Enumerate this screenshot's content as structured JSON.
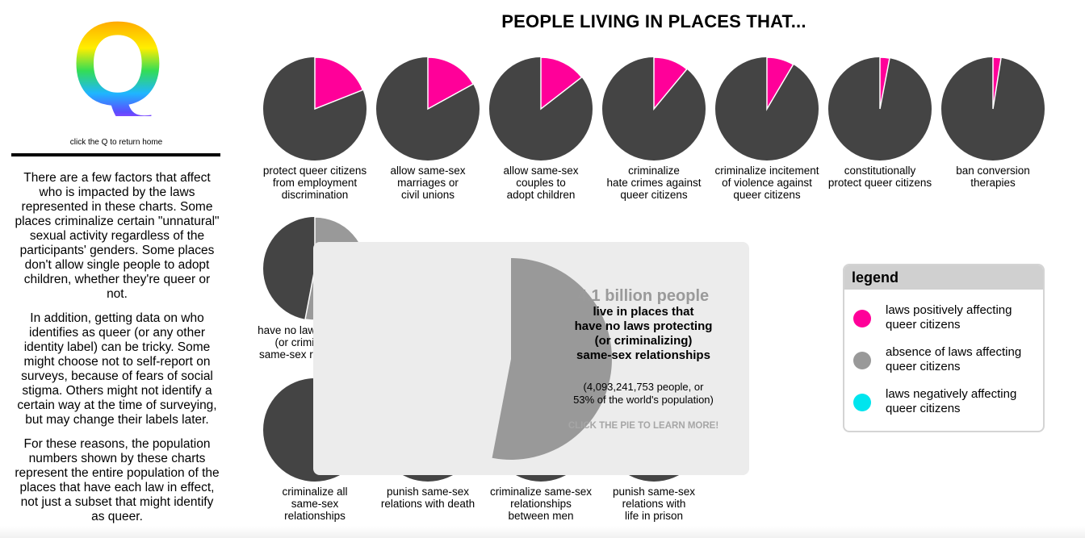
{
  "sidebar": {
    "logo_letter": "Q",
    "caption": "click the Q to return home",
    "paragraphs": [
      "There are a few factors that affect who is impacted by the laws represented in these charts. Some places criminalize certain \"unnatural\" sexual activity regardless of the participants' genders. Some places don't allow single people to adopt children, whether they're queer or not.",
      "In addition, getting data on who identifies as queer (or any other identity label) can be tricky. Some might choose not to self-report on surveys, because of fears of social stigma. Others might not identify a certain way at the time of surveying, but may change their labels later.",
      "For these reasons, the population numbers shown by these charts represent the entire population of the places that have each law in effect, not just a subset that might identify as queer."
    ]
  },
  "colors": {
    "positive": "#ff0099",
    "absence": "#999999",
    "negative": "#00e5ee",
    "rest": "#444444"
  },
  "chart_data": {
    "type": "pie",
    "title": "PEOPLE LIVING IN PLACES THAT...",
    "charts": [
      {
        "label": [
          "protect queer citizens",
          "from employment",
          "discrimination"
        ],
        "category": "positive",
        "value": 0.19
      },
      {
        "label": [
          "allow same-sex",
          "marriages or",
          "civil unions"
        ],
        "category": "positive",
        "value": 0.17
      },
      {
        "label": [
          "allow same-sex",
          "couples to",
          "adopt children"
        ],
        "category": "positive",
        "value": 0.145
      },
      {
        "label": [
          "criminalize",
          "hate crimes against",
          "queer citizens"
        ],
        "category": "positive",
        "value": 0.11
      },
      {
        "label": [
          "criminalize incitement",
          "of violence against",
          "queer citizens"
        ],
        "category": "positive",
        "value": 0.085
      },
      {
        "label": [
          "constitutionally",
          "protect queer citizens"
        ],
        "category": "positive",
        "value": 0.03
      },
      {
        "label": [
          "ban conversion",
          "therapies"
        ],
        "category": "positive",
        "value": 0.025
      },
      {
        "label": [
          "have no laws protecting",
          "(or criminalizing)",
          "same-sex relationships"
        ],
        "category": "absence",
        "value": 0.53
      },
      {
        "label": [
          "criminalize all",
          "same-sex",
          "relationships"
        ],
        "category": "negative",
        "value": 0.0
      },
      {
        "label": [
          "punish same-sex",
          "relations with death"
        ],
        "category": "negative",
        "value": 0.0
      },
      {
        "label": [
          "criminalize same-sex",
          "relationships",
          "between men"
        ],
        "category": "negative",
        "value": 0.0
      },
      {
        "label": [
          "punish same-sex",
          "relations with",
          "life in prison"
        ],
        "category": "negative",
        "value": 0.0
      }
    ]
  },
  "tooltip": {
    "value": 0.53,
    "big": "4.1 billion people",
    "desc": [
      "live in places that",
      "have no laws protecting",
      "(or criminalizing)",
      "same-sex relationships"
    ],
    "detail": [
      "(4,093,241,753 people, or",
      "53% of the world's population)"
    ],
    "cta": "CLICK THE PIE TO LEARN MORE!"
  },
  "legend": {
    "title": "legend",
    "items": [
      {
        "label": "laws positively affecting queer citizens",
        "color_key": "positive"
      },
      {
        "label": "absence of laws affecting queer citizens",
        "color_key": "absence"
      },
      {
        "label": "laws negatively affecting queer citizens",
        "color_key": "negative"
      }
    ]
  }
}
